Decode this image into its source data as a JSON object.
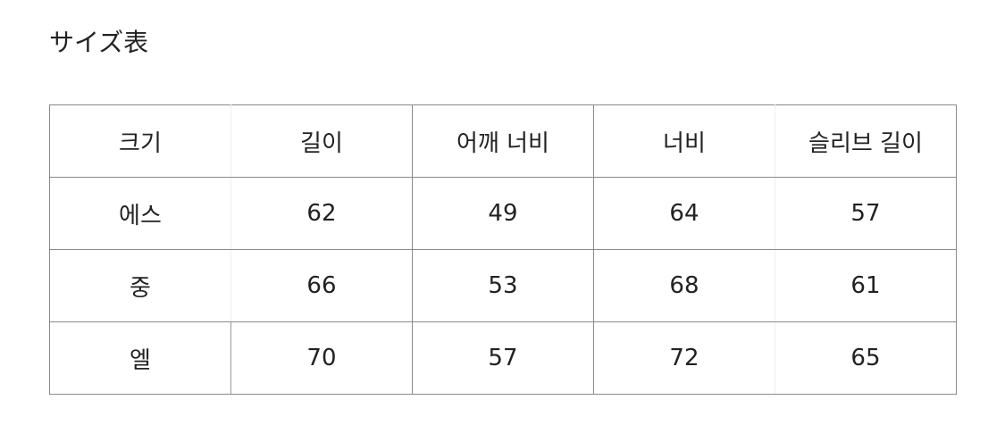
{
  "title": "サイズ表",
  "table": {
    "headers": [
      "크기",
      "길이",
      "어깨 너비",
      "너비",
      "슬리브 길이"
    ],
    "rows": [
      [
        "에스",
        "62",
        "49",
        "64",
        "57"
      ],
      [
        "중",
        "66",
        "53",
        "68",
        "61"
      ],
      [
        "엘",
        "70",
        "57",
        "72",
        "65"
      ]
    ]
  }
}
